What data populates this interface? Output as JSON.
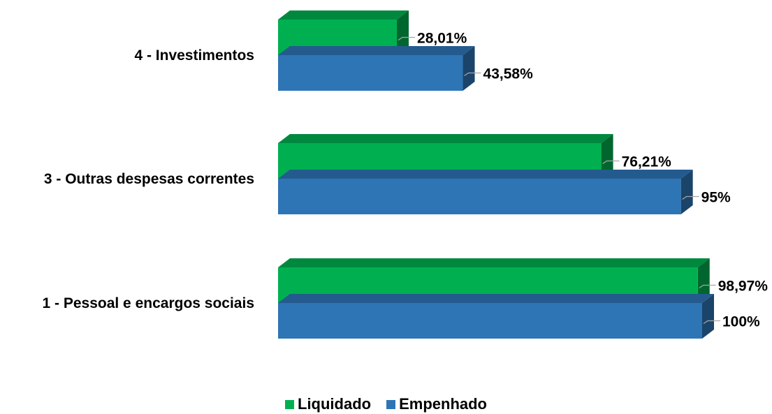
{
  "chart_data": {
    "type": "bar",
    "orientation": "horizontal",
    "style": "3d-clustered",
    "categories": [
      "4 - Investimentos",
      "3 - Outras despesas correntes",
      "1 - Pessoal e encargos sociais"
    ],
    "series": [
      {
        "name": "Liquidado",
        "color": "#00b050",
        "values": [
          28.01,
          76.21,
          98.97
        ],
        "labels": [
          "28,01%",
          "76,21%",
          "98,97%"
        ]
      },
      {
        "name": "Empenhado",
        "color": "#2e75b6",
        "values": [
          43.58,
          95,
          100
        ],
        "labels": [
          "43,58%",
          "95%",
          "100%"
        ]
      }
    ],
    "xlim": [
      0,
      100
    ],
    "grid": false,
    "legend_position": "bottom",
    "title": "",
    "xlabel": "",
    "ylabel": ""
  },
  "legend": {
    "items": [
      {
        "label": "Liquidado",
        "color": "#00b050"
      },
      {
        "label": "Empenhado",
        "color": "#2e75b6"
      }
    ]
  }
}
